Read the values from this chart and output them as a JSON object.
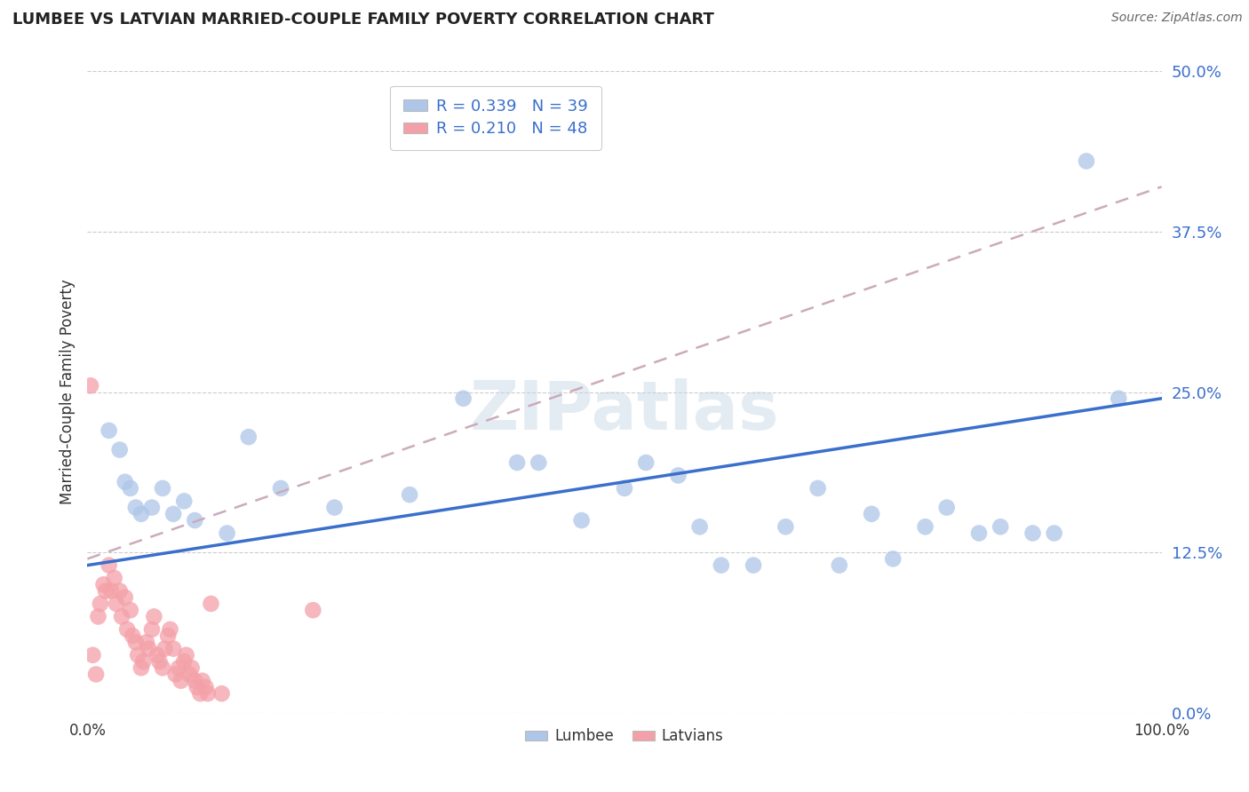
{
  "title": "LUMBEE VS LATVIAN MARRIED-COUPLE FAMILY POVERTY CORRELATION CHART",
  "source": "Source: ZipAtlas.com",
  "ylabel": "Married-Couple Family Poverty",
  "yticks": [
    "0.0%",
    "12.5%",
    "25.0%",
    "37.5%",
    "50.0%"
  ],
  "ytick_vals": [
    0.0,
    12.5,
    25.0,
    37.5,
    50.0
  ],
  "xlim": [
    0,
    100
  ],
  "ylim": [
    0,
    50
  ],
  "watermark": "ZIPatlas",
  "lumbee_color": "#aec6e8",
  "latvian_color": "#f4a0a8",
  "lumbee_line_color": "#3a6fcc",
  "latvian_line_color": "#ccaabb",
  "lumbee_R": 0.339,
  "latvian_R": 0.21,
  "lumbee_N": 39,
  "latvian_N": 48,
  "lumbee_points": [
    [
      2,
      22.0
    ],
    [
      3,
      20.5
    ],
    [
      3.5,
      18.0
    ],
    [
      4,
      17.5
    ],
    [
      4.5,
      16.0
    ],
    [
      5,
      15.5
    ],
    [
      6,
      16.0
    ],
    [
      7,
      17.5
    ],
    [
      8,
      15.5
    ],
    [
      9,
      16.5
    ],
    [
      10,
      15.0
    ],
    [
      13,
      14.0
    ],
    [
      15,
      21.5
    ],
    [
      18,
      17.5
    ],
    [
      23,
      16.0
    ],
    [
      30,
      17.0
    ],
    [
      35,
      24.5
    ],
    [
      40,
      19.5
    ],
    [
      42,
      19.5
    ],
    [
      46,
      15.0
    ],
    [
      50,
      17.5
    ],
    [
      52,
      19.5
    ],
    [
      55,
      18.5
    ],
    [
      57,
      14.5
    ],
    [
      59,
      11.5
    ],
    [
      62,
      11.5
    ],
    [
      65,
      14.5
    ],
    [
      68,
      17.5
    ],
    [
      70,
      11.5
    ],
    [
      73,
      15.5
    ],
    [
      75,
      12.0
    ],
    [
      78,
      14.5
    ],
    [
      80,
      16.0
    ],
    [
      83,
      14.0
    ],
    [
      85,
      14.5
    ],
    [
      88,
      14.0
    ],
    [
      90,
      14.0
    ],
    [
      93,
      43.0
    ],
    [
      96,
      24.5
    ]
  ],
  "latvian_points": [
    [
      0.3,
      25.5
    ],
    [
      0.5,
      4.5
    ],
    [
      0.8,
      3.0
    ],
    [
      1.0,
      7.5
    ],
    [
      1.2,
      8.5
    ],
    [
      1.5,
      10.0
    ],
    [
      1.7,
      9.5
    ],
    [
      2.0,
      11.5
    ],
    [
      2.2,
      9.5
    ],
    [
      2.5,
      10.5
    ],
    [
      2.7,
      8.5
    ],
    [
      3.0,
      9.5
    ],
    [
      3.2,
      7.5
    ],
    [
      3.5,
      9.0
    ],
    [
      3.7,
      6.5
    ],
    [
      4.0,
      8.0
    ],
    [
      4.2,
      6.0
    ],
    [
      4.5,
      5.5
    ],
    [
      4.7,
      4.5
    ],
    [
      5.0,
      3.5
    ],
    [
      5.2,
      4.0
    ],
    [
      5.5,
      5.5
    ],
    [
      5.7,
      5.0
    ],
    [
      6.0,
      6.5
    ],
    [
      6.2,
      7.5
    ],
    [
      6.5,
      4.5
    ],
    [
      6.7,
      4.0
    ],
    [
      7.0,
      3.5
    ],
    [
      7.2,
      5.0
    ],
    [
      7.5,
      6.0
    ],
    [
      7.7,
      6.5
    ],
    [
      8.0,
      5.0
    ],
    [
      8.2,
      3.0
    ],
    [
      8.5,
      3.5
    ],
    [
      8.7,
      2.5
    ],
    [
      9.0,
      4.0
    ],
    [
      9.2,
      4.5
    ],
    [
      9.5,
      3.0
    ],
    [
      9.7,
      3.5
    ],
    [
      10.0,
      2.5
    ],
    [
      10.2,
      2.0
    ],
    [
      10.5,
      1.5
    ],
    [
      10.7,
      2.5
    ],
    [
      11.0,
      2.0
    ],
    [
      11.2,
      1.5
    ],
    [
      11.5,
      8.5
    ],
    [
      12.5,
      1.5
    ],
    [
      21.0,
      8.0
    ]
  ],
  "lumbee_line_intercept": 11.5,
  "lumbee_line_slope": 0.13,
  "latvian_line_intercept": 12.0,
  "latvian_line_slope": 0.29
}
